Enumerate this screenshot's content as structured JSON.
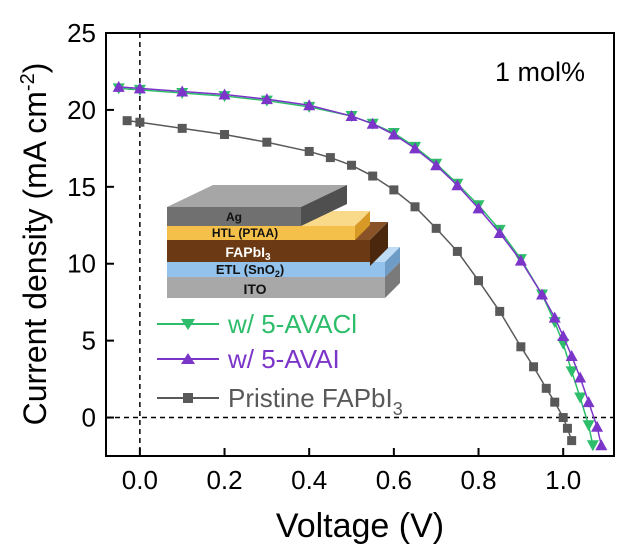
{
  "chart_data": {
    "type": "line",
    "title": "",
    "xlabel": "Voltage (V)",
    "ylabel": "Current density (mA cm-2)",
    "ylabel_parts": {
      "main": "Current density (mA cm",
      "sup": "-2",
      "end": ")"
    },
    "xlim": [
      -0.08,
      1.12
    ],
    "ylim": [
      -2.5,
      25
    ],
    "x_ticks": [
      0.0,
      0.2,
      0.4,
      0.6,
      0.8,
      1.0
    ],
    "x_tick_labels": [
      "0.0",
      "0.2",
      "0.4",
      "0.6",
      "0.8",
      "1.0"
    ],
    "y_ticks": [
      0,
      5,
      10,
      15,
      20,
      25
    ],
    "y_tick_labels": [
      "0",
      "5",
      "10",
      "15",
      "20",
      "25"
    ],
    "reference_lines": {
      "x": 0,
      "y": 0,
      "style": "dashed"
    },
    "annotation": "1 mol%",
    "legend_position": "left-middle",
    "series": [
      {
        "name": "w/ 5-AVACl",
        "color": "#2ebd6b",
        "marker": "triangle-down",
        "x": [
          -0.05,
          0.0,
          0.1,
          0.2,
          0.3,
          0.4,
          0.5,
          0.55,
          0.6,
          0.65,
          0.7,
          0.75,
          0.8,
          0.85,
          0.9,
          0.95,
          0.98,
          1.0,
          1.02,
          1.04,
          1.06,
          1.07
        ],
        "y": [
          21.4,
          21.3,
          21.1,
          20.9,
          20.6,
          20.2,
          19.6,
          19.1,
          18.5,
          17.6,
          16.5,
          15.2,
          13.8,
          12.2,
          10.3,
          8.0,
          6.2,
          4.8,
          3.0,
          1.3,
          -0.5,
          -1.8
        ]
      },
      {
        "name": "w/ 5-AVAI",
        "color": "#7b35c8",
        "marker": "triangle-up",
        "x": [
          -0.05,
          0.0,
          0.1,
          0.2,
          0.3,
          0.4,
          0.5,
          0.55,
          0.6,
          0.65,
          0.7,
          0.75,
          0.8,
          0.85,
          0.9,
          0.95,
          0.98,
          1.0,
          1.02,
          1.04,
          1.06,
          1.08,
          1.09
        ],
        "y": [
          21.5,
          21.4,
          21.2,
          21.0,
          20.7,
          20.3,
          19.6,
          19.1,
          18.4,
          17.5,
          16.4,
          15.1,
          13.6,
          12.0,
          10.2,
          8.0,
          6.5,
          5.3,
          4.0,
          2.6,
          1.0,
          -0.6,
          -1.8
        ]
      },
      {
        "name": "Pristine FAPbI3",
        "label_main": "Pristine FAPbI",
        "label_sub": "3",
        "color": "#595959",
        "marker": "square",
        "x": [
          -0.03,
          0.0,
          0.1,
          0.2,
          0.3,
          0.4,
          0.45,
          0.5,
          0.55,
          0.6,
          0.65,
          0.7,
          0.75,
          0.8,
          0.85,
          0.9,
          0.93,
          0.96,
          0.98,
          1.0,
          1.01,
          1.02
        ],
        "y": [
          19.3,
          19.2,
          18.8,
          18.4,
          17.9,
          17.3,
          16.9,
          16.4,
          15.7,
          14.8,
          13.7,
          12.3,
          10.8,
          8.9,
          6.9,
          4.6,
          3.3,
          1.9,
          1.0,
          0.0,
          -0.7,
          -1.5
        ]
      }
    ]
  },
  "inset": {
    "layers": [
      {
        "label": "Ag",
        "color": "#707070"
      },
      {
        "label": "HTL (PTAA)",
        "color": "#f5c04a"
      },
      {
        "label_main": "FAPbI",
        "label_sub": "3",
        "color": "#6b3a14"
      },
      {
        "label_main": "ETL (SnO",
        "label_sub": "2",
        "label_end": ")",
        "color": "#93c2ec"
      },
      {
        "label": "ITO",
        "color": "#a8a8a8"
      }
    ]
  }
}
